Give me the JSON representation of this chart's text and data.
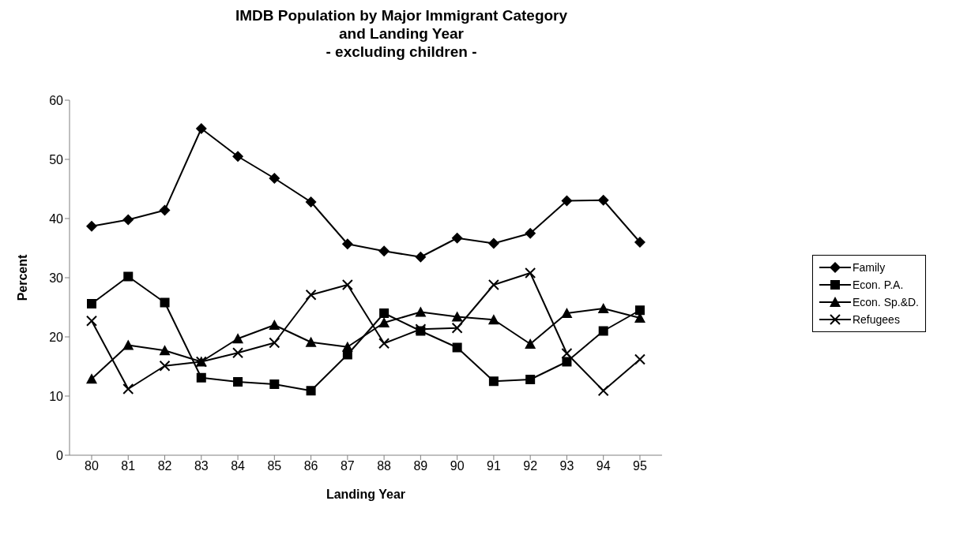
{
  "chart_data": {
    "type": "line",
    "title": "IMDB Population by Major Immigrant Category\nand Landing Year\n- excluding children -",
    "xlabel": "Landing Year",
    "ylabel": "Percent",
    "categories": [
      "80",
      "81",
      "82",
      "83",
      "84",
      "85",
      "86",
      "87",
      "88",
      "89",
      "90",
      "91",
      "92",
      "93",
      "94",
      "95"
    ],
    "ylim": [
      0,
      60
    ],
    "yticks": [
      0,
      10,
      20,
      30,
      40,
      50,
      60
    ],
    "grid": false,
    "legend": "right",
    "line_style": "solid",
    "series": [
      {
        "name": "Family",
        "color": "#000000",
        "marker": "diamond",
        "values": [
          38.7,
          39.8,
          41.4,
          55.2,
          50.5,
          46.8,
          42.8,
          35.7,
          34.5,
          33.5,
          36.7,
          35.8,
          37.5,
          43,
          43.1,
          36
        ]
      },
      {
        "name": "Econ. P.A.",
        "color": "#000000",
        "marker": "square",
        "values": [
          25.6,
          30.2,
          25.8,
          13.1,
          12.4,
          12,
          10.9,
          17,
          24,
          21,
          18.2,
          12.5,
          12.8,
          15.8,
          21,
          24.5
        ]
      },
      {
        "name": "Econ. Sp.&D.",
        "color": "#000000",
        "marker": "triangle",
        "values": [
          12.9,
          18.6,
          17.7,
          15.8,
          19.7,
          22,
          19.1,
          18.3,
          22.4,
          24.2,
          23.4,
          22.9,
          18.8,
          24,
          24.8,
          23.2
        ]
      },
      {
        "name": "Refugees",
        "color": "#000000",
        "marker": "cross",
        "values": [
          22.7,
          11.2,
          15.1,
          15.8,
          17.3,
          19,
          27.1,
          28.8,
          18.9,
          21.3,
          21.5,
          28.8,
          30.8,
          17.2,
          10.9,
          16.2
        ]
      }
    ]
  }
}
